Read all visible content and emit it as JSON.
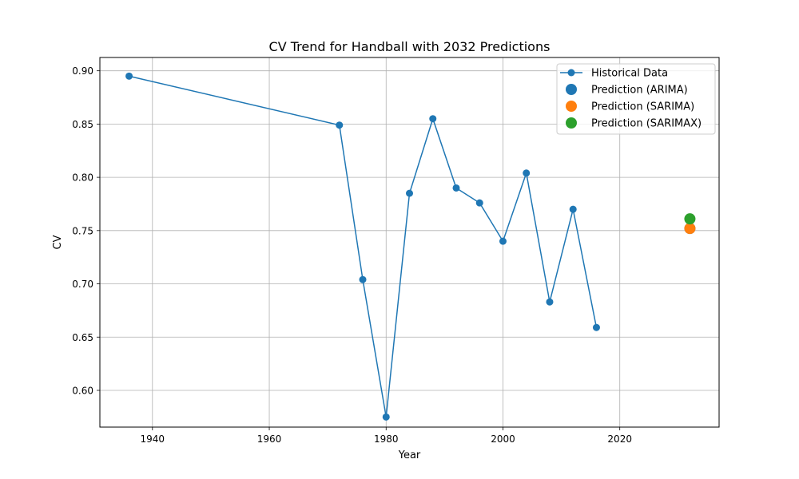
{
  "chart_data": {
    "type": "line",
    "title": "CV Trend for Handball with 2032 Predictions",
    "xlabel": "Year",
    "ylabel": "CV",
    "xlim": [
      1931,
      2037
    ],
    "ylim": [
      0.5655,
      0.9125
    ],
    "xticks": [
      1940,
      1960,
      1980,
      2000,
      2020
    ],
    "yticks": [
      0.6,
      0.65,
      0.7,
      0.75,
      0.8,
      0.85,
      0.9
    ],
    "grid": true,
    "legend_position": "top-right",
    "series": [
      {
        "name": "Historical Data",
        "kind": "line-marker",
        "color": "#1f77b4",
        "points": [
          {
            "x": 1936,
            "y": 0.895
          },
          {
            "x": 1972,
            "y": 0.849
          },
          {
            "x": 1976,
            "y": 0.704
          },
          {
            "x": 1980,
            "y": 0.575
          },
          {
            "x": 1984,
            "y": 0.785
          },
          {
            "x": 1988,
            "y": 0.855
          },
          {
            "x": 1992,
            "y": 0.79
          },
          {
            "x": 1996,
            "y": 0.776
          },
          {
            "x": 2000,
            "y": 0.74
          },
          {
            "x": 2004,
            "y": 0.804
          },
          {
            "x": 2008,
            "y": 0.683
          },
          {
            "x": 2012,
            "y": 0.77
          },
          {
            "x": 2016,
            "y": 0.659
          }
        ]
      },
      {
        "name": "Prediction (ARIMA)",
        "kind": "point",
        "color": "#1f77b4",
        "points": [
          {
            "x": 2032,
            "y": 0.752
          }
        ]
      },
      {
        "name": "Prediction (SARIMA)",
        "kind": "point",
        "color": "#ff7f0e",
        "points": [
          {
            "x": 2032,
            "y": 0.752
          }
        ]
      },
      {
        "name": "Prediction (SARIMAX)",
        "kind": "point",
        "color": "#2ca02c",
        "points": [
          {
            "x": 2032,
            "y": 0.761
          }
        ]
      }
    ]
  }
}
